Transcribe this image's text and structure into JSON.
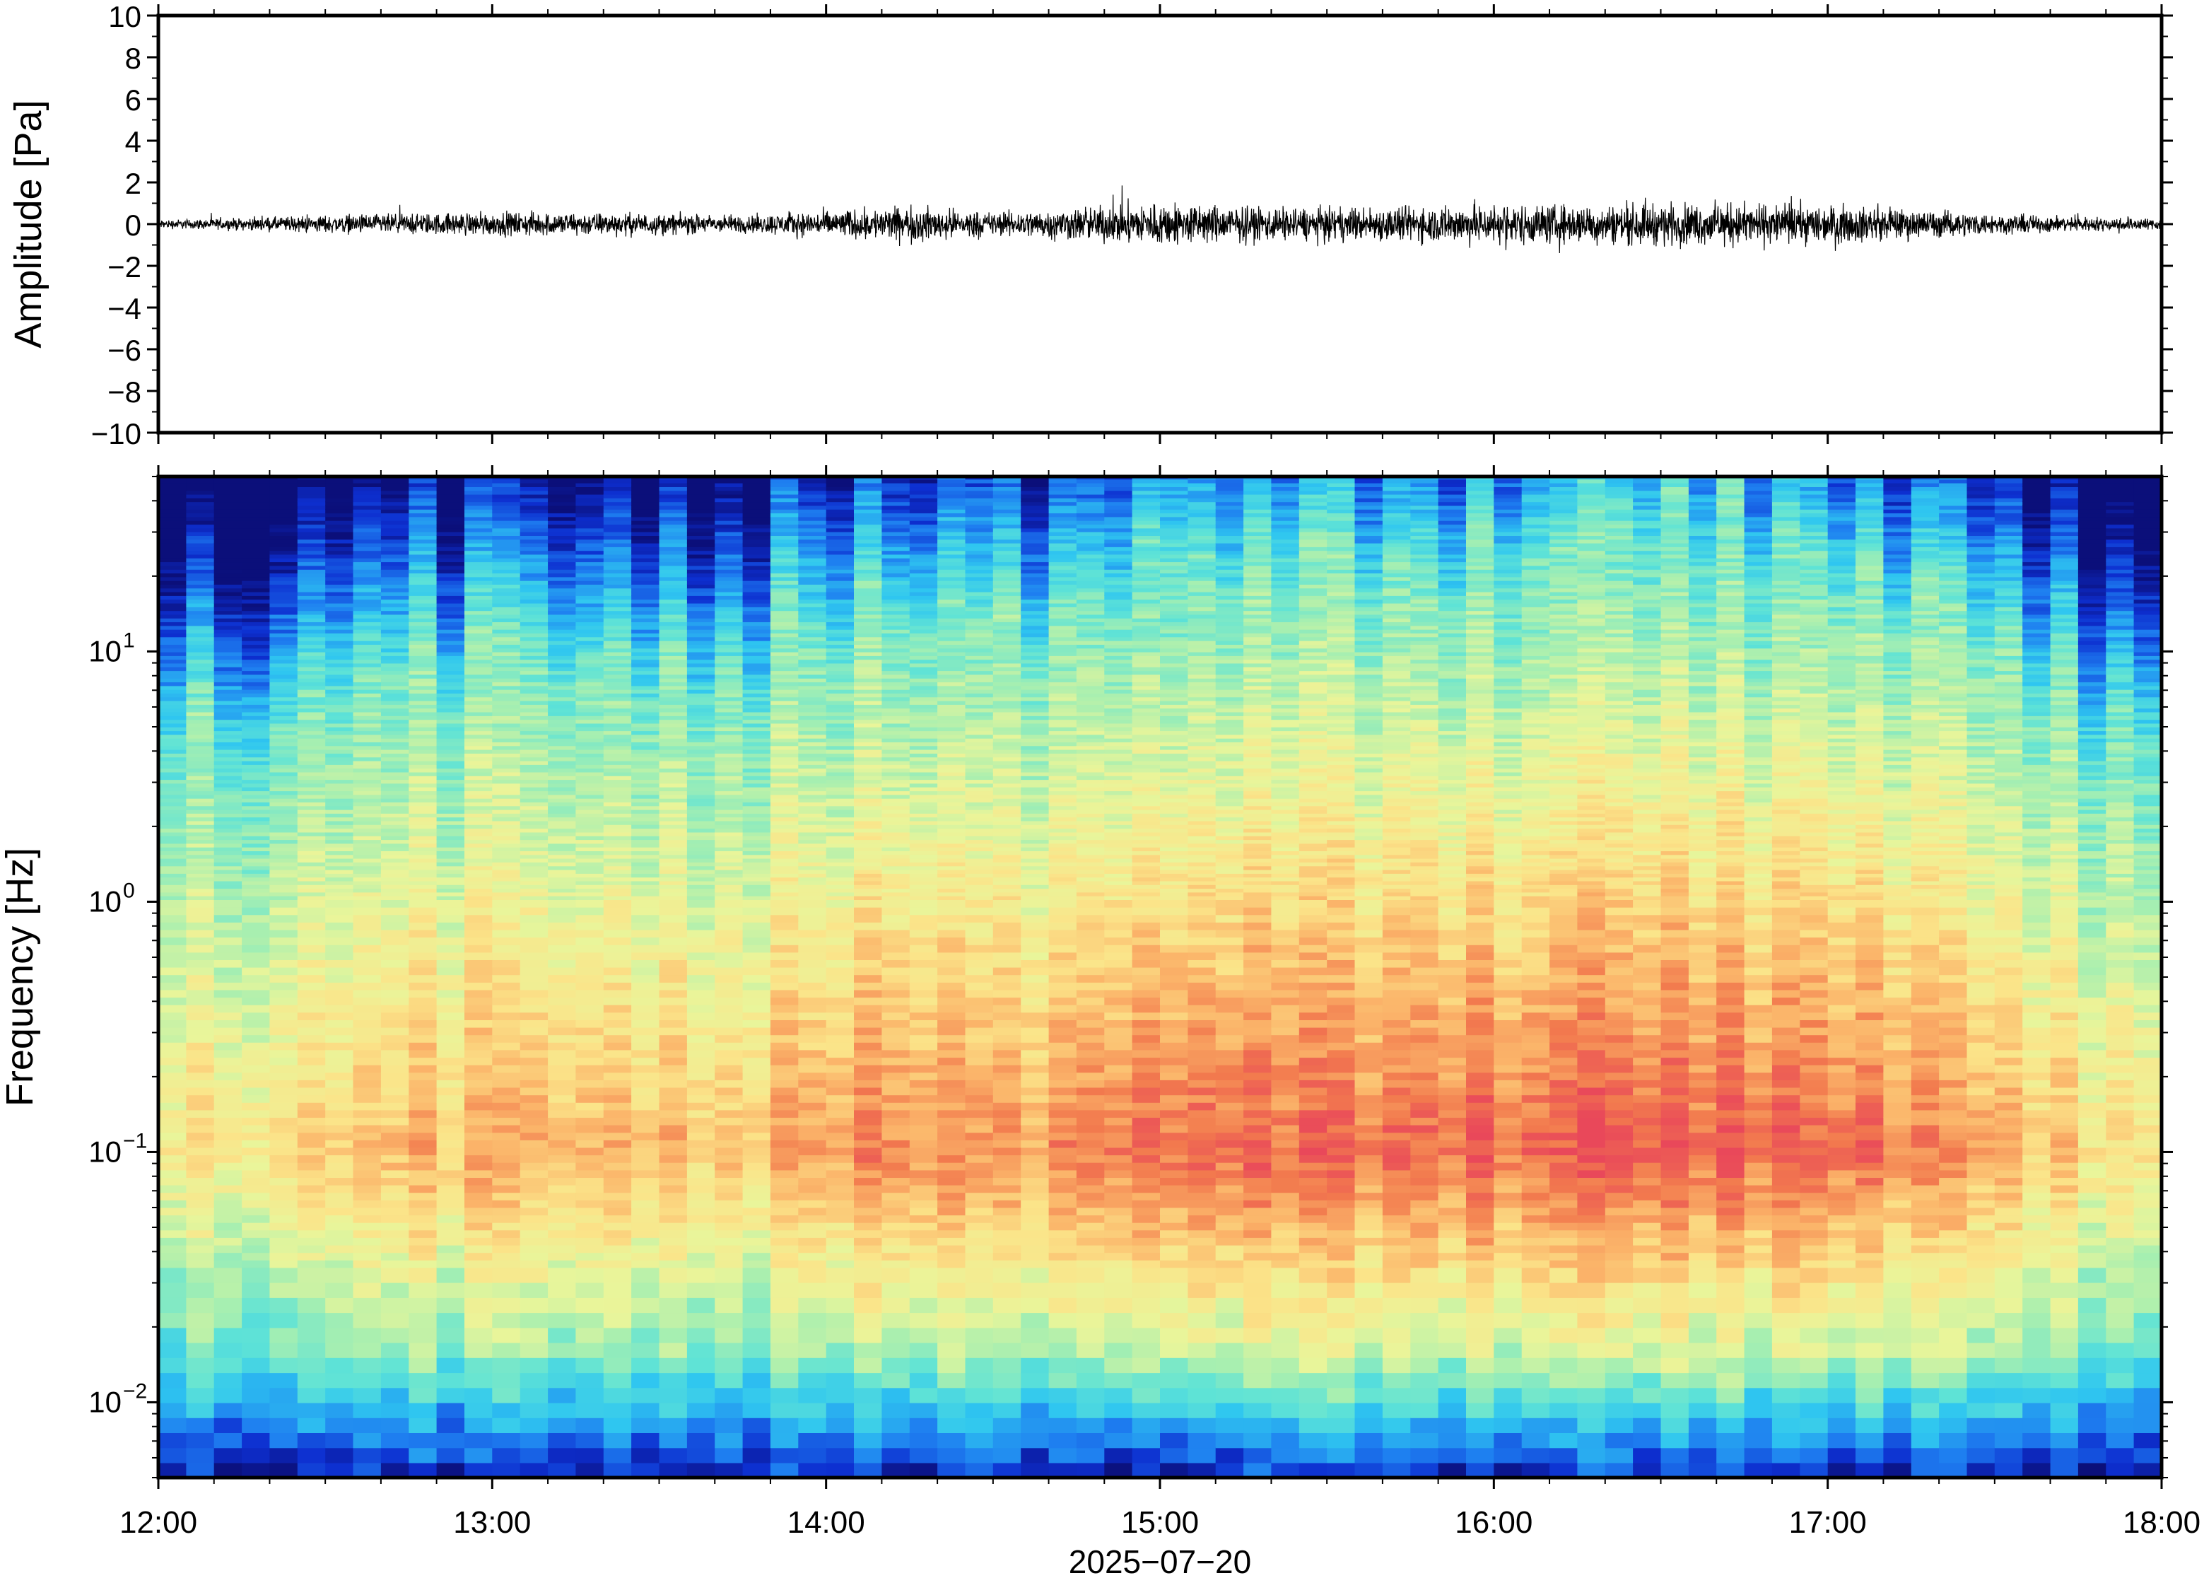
{
  "chart_data": [
    {
      "type": "line",
      "ylabel": "Amplitude [Pa]",
      "ylim": [
        -10,
        10
      ],
      "yticks": [
        10,
        8,
        6,
        4,
        2,
        0,
        -2,
        -4,
        -6,
        -8,
        -10
      ],
      "ytick_labels": [
        "10",
        "8",
        "6",
        "4",
        "2",
        "0",
        "−2",
        "−4",
        "−6",
        "−8",
        "−10"
      ],
      "series": [
        {
          "color": "#000000",
          "envelope_times_hours": [
            12.0,
            12.25,
            12.5,
            12.75,
            13.0,
            13.25,
            13.5,
            13.75,
            14.0,
            14.25,
            14.5,
            14.75,
            15.0,
            15.25,
            15.5,
            15.75,
            16.0,
            16.25,
            16.5,
            16.75,
            17.0,
            17.25,
            17.5,
            17.75,
            18.0
          ],
          "envelope_max_pa": [
            0.3,
            0.4,
            0.6,
            0.7,
            0.8,
            0.8,
            0.7,
            0.6,
            0.9,
            1.2,
            0.8,
            1.1,
            1.5,
            1.2,
            1.1,
            1.2,
            1.4,
            1.3,
            1.4,
            1.4,
            1.3,
            1.0,
            0.7,
            0.5,
            0.4
          ]
        }
      ]
    },
    {
      "type": "heatmap",
      "ylabel": "Frequency [Hz]",
      "xlabel": "2025−07−20",
      "xlim": [
        "12:00",
        "18:00"
      ],
      "xticks": [
        "12:00",
        "13:00",
        "14:00",
        "15:00",
        "16:00",
        "17:00",
        "18:00"
      ],
      "yscale": "log",
      "ylim": [
        0.005,
        50
      ],
      "yticks": [
        {
          "value": 10,
          "mantissa": "10",
          "exponent": "1"
        },
        {
          "value": 1,
          "mantissa": "10",
          "exponent": "0"
        },
        {
          "value": 0.1,
          "mantissa": "10",
          "exponent": "−1"
        },
        {
          "value": 0.01,
          "mantissa": "10",
          "exponent": "−2"
        }
      ],
      "colormap": [
        "#0b0f7a",
        "#0d2fd0",
        "#1e7ef0",
        "#2fc6f0",
        "#5fe3d6",
        "#a8efb0",
        "#e9f59a",
        "#fbe489",
        "#fbb56a",
        "#f27a4e",
        "#e9485a"
      ],
      "time_columns": 72,
      "peak_frequency_hz": 0.1,
      "low_freq_floor_hz": 0.01
    }
  ]
}
